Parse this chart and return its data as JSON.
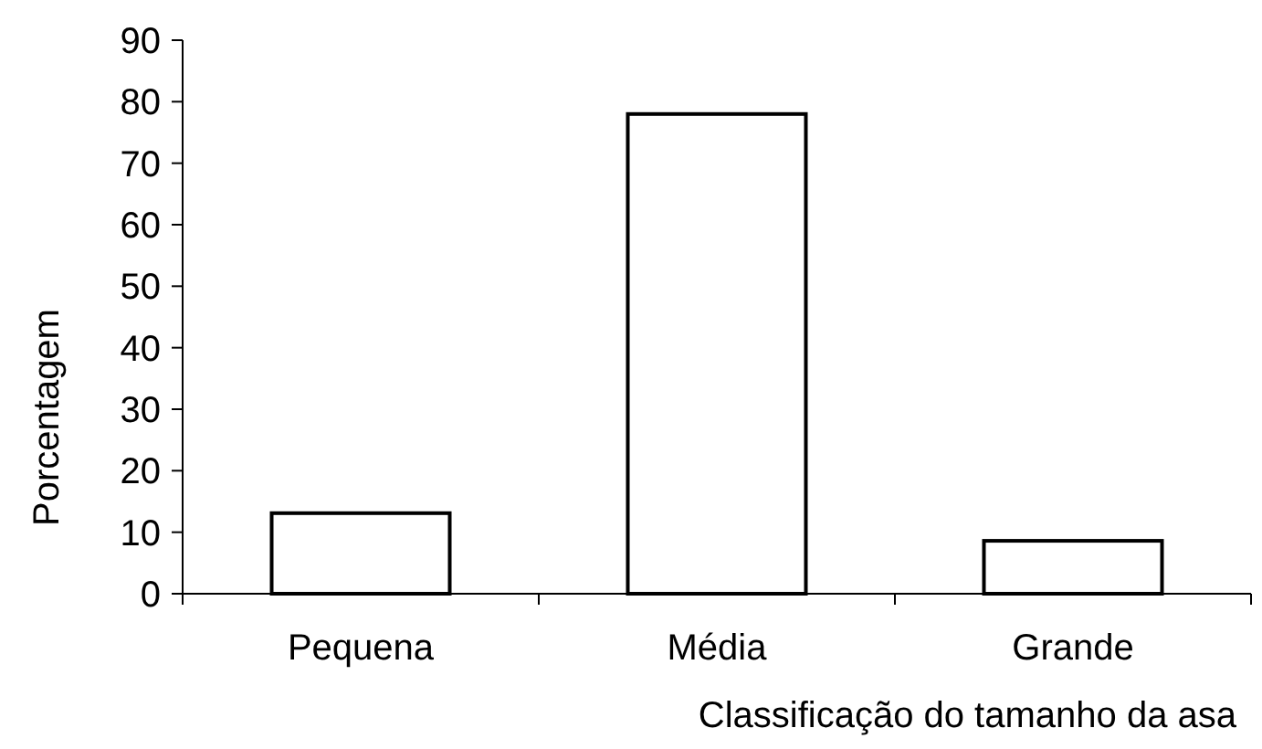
{
  "chart_data": {
    "type": "bar",
    "xlabel": "Classificação do tamanho da asa",
    "ylabel": "Porcentagem",
    "categories": [
      "Pequena",
      "Média",
      "Grande"
    ],
    "values": [
      13.1,
      78,
      8.6
    ],
    "color": "#ffffff",
    "ylim": [
      0,
      90
    ],
    "yticks": [
      0,
      10,
      20,
      30,
      40,
      50,
      60,
      70,
      80,
      90
    ],
    "grid": false
  }
}
